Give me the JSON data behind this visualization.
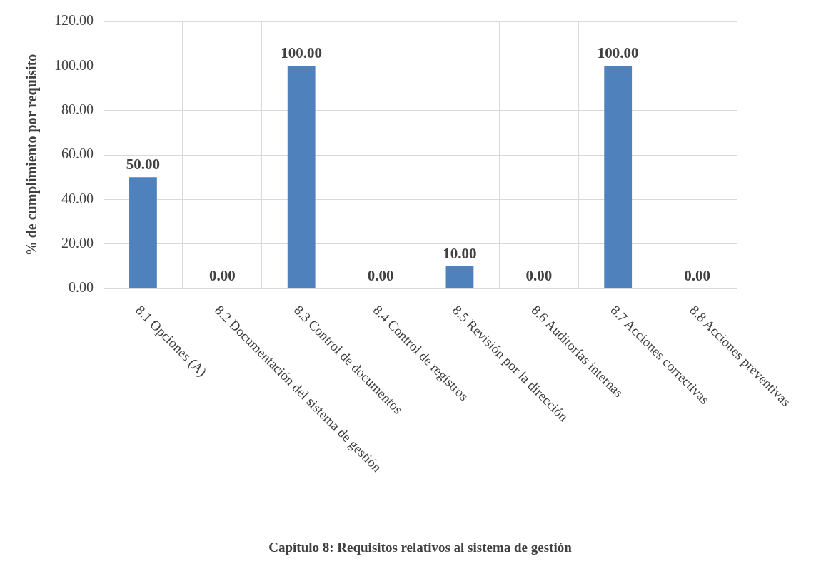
{
  "chart_data": {
    "type": "bar",
    "xlabel": "Capítulo 8: Requisitos relativos al sistema de gestión",
    "ylabel": "% de cumplimiento por requisito",
    "categories": [
      "8.1 Opciones (A)",
      "8.2 Documentación del sistema de gestión",
      "8.3 Control de documentos",
      "8.4 Control de registros",
      "8.5 Revisión por la dirección",
      "8.6 Auditorías internas",
      "8.7 Acciones correctivas",
      "8.8 Acciones preventivas"
    ],
    "values": [
      50,
      0,
      100,
      0,
      10,
      0,
      100,
      0
    ],
    "value_labels": [
      "50.00",
      "0.00",
      "100.00",
      "0.00",
      "10.00",
      "0.00",
      "100.00",
      "0.00"
    ],
    "color": "#4f81bd",
    "ylim": [
      0,
      120
    ],
    "yticks": [
      {
        "value": 0,
        "label": "0.00"
      },
      {
        "value": 20,
        "label": "20.00"
      },
      {
        "value": 40,
        "label": "40.00"
      },
      {
        "value": 60,
        "label": "60.00"
      },
      {
        "value": 80,
        "label": "80.00"
      },
      {
        "value": 100,
        "label": "100.00"
      },
      {
        "value": 120,
        "label": "120.00"
      }
    ],
    "grid": true,
    "legend": false
  }
}
